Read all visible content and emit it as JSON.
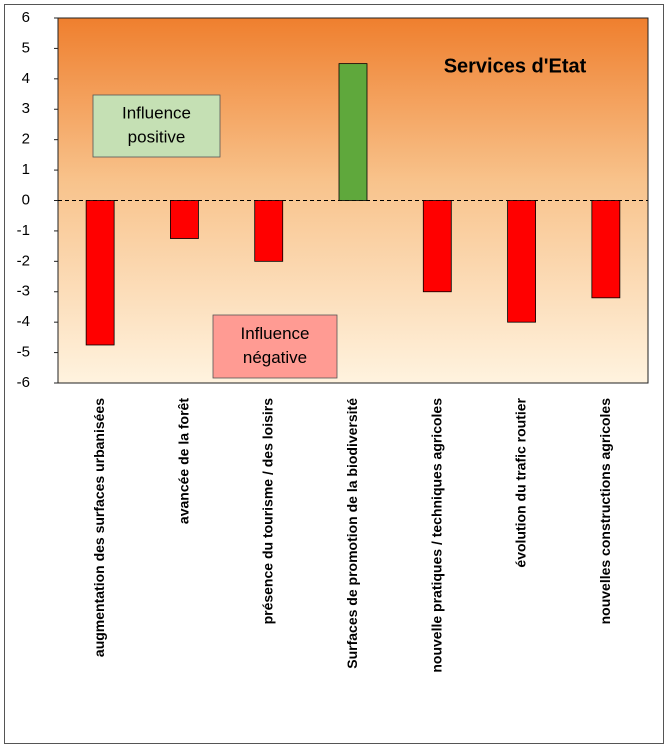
{
  "chart_data": {
    "type": "bar",
    "title": "Services d'Etat",
    "categories": [
      "augmentation des surfaces urbanisées",
      "avancée de la forêt",
      "présence du tourisme / des loisirs",
      "Surfaces de promotion de la biodiversité",
      "nouvelle pratiques / techniques agricoles",
      "évolution du trafic routier",
      "nouvelles constructions agricoles"
    ],
    "values": [
      -4.75,
      -1.25,
      -2,
      4.5,
      -3,
      -4,
      -3.2
    ],
    "colors": [
      "#ff0000",
      "#ff0000",
      "#ff0000",
      "#5fa83c",
      "#ff0000",
      "#ff0000",
      "#ff0000"
    ],
    "ylim": [
      -6,
      6
    ],
    "yticks": [
      -6,
      -5,
      -4,
      -3,
      -2,
      -1,
      0,
      1,
      2,
      3,
      4,
      5,
      6
    ],
    "grid": false,
    "annotations": [
      {
        "lines": [
          "Influence",
          "positive"
        ],
        "color": "#c5e0b4"
      },
      {
        "lines": [
          "Influence",
          "négative"
        ],
        "color": "#ff9b93"
      }
    ]
  }
}
